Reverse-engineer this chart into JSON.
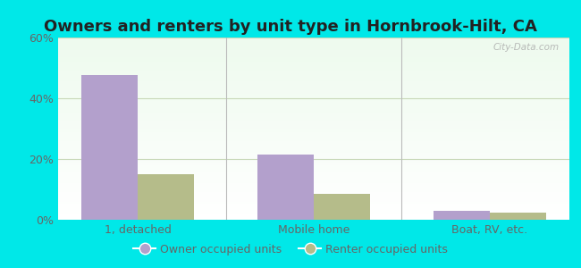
{
  "title": "Owners and renters by unit type in Hornbrook-Hilt, CA",
  "categories": [
    "1, detached",
    "Mobile home",
    "Boat, RV, etc."
  ],
  "owner_values": [
    47.5,
    21.5,
    3.0
  ],
  "renter_values": [
    15.0,
    8.5,
    2.5
  ],
  "owner_color": "#b3a0cc",
  "renter_color": "#b5bc8a",
  "ylim": [
    0,
    60
  ],
  "yticks": [
    0,
    20,
    40,
    60
  ],
  "ytick_labels": [
    "0%",
    "20%",
    "40%",
    "60%"
  ],
  "background_color": "#00e8e8",
  "grid_color": "#c8d8b8",
  "title_fontsize": 13,
  "tick_fontsize": 9,
  "legend_owner": "Owner occupied units",
  "legend_renter": "Renter occupied units",
  "bar_width": 0.32,
  "watermark": "City-Data.com",
  "separator_color": "#bbbbbb",
  "tick_color": "#666666"
}
